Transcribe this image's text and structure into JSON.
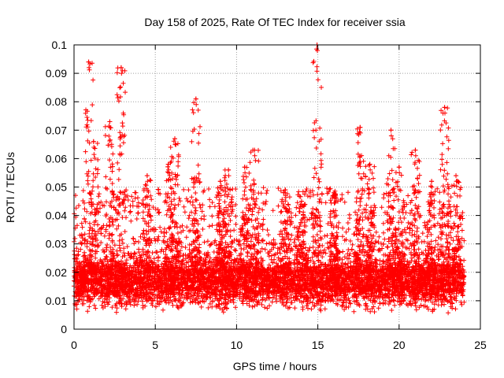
{
  "chart_data": {
    "type": "scatter",
    "title": "Day 158 of 2025, Rate Of TEC Index for receiver ssia",
    "xlabel": "GPS time / hours",
    "ylabel": "ROTI / TECUs",
    "xlim": [
      0,
      25
    ],
    "ylim": [
      0,
      0.1
    ],
    "x_ticks": [
      "0",
      "5",
      "10",
      "15",
      "20",
      "25"
    ],
    "y_ticks": [
      "0",
      "0.01",
      "0.02",
      "0.03",
      "0.04",
      "0.05",
      "0.06",
      "0.07",
      "0.08",
      "0.09",
      "0.1"
    ],
    "grid": true,
    "marker": "+",
    "series_color": "#ff0000",
    "x_range_of_data": [
      0,
      24
    ],
    "baseline_band": [
      0.005,
      0.025
    ],
    "peaks": [
      {
        "x": 0.9,
        "y": 0.094
      },
      {
        "x": 1.2,
        "y": 0.066
      },
      {
        "x": 2.2,
        "y": 0.073
      },
      {
        "x": 2.9,
        "y": 0.092
      },
      {
        "x": 4.5,
        "y": 0.054
      },
      {
        "x": 5.8,
        "y": 0.058
      },
      {
        "x": 6.2,
        "y": 0.067
      },
      {
        "x": 7.5,
        "y": 0.081
      },
      {
        "x": 9.0,
        "y": 0.052
      },
      {
        "x": 9.5,
        "y": 0.056
      },
      {
        "x": 10.5,
        "y": 0.057
      },
      {
        "x": 11.1,
        "y": 0.063
      },
      {
        "x": 13.0,
        "y": 0.049
      },
      {
        "x": 14.0,
        "y": 0.045
      },
      {
        "x": 14.95,
        "y": 0.1
      },
      {
        "x": 16.0,
        "y": 0.048
      },
      {
        "x": 17.6,
        "y": 0.071
      },
      {
        "x": 18.2,
        "y": 0.058
      },
      {
        "x": 19.5,
        "y": 0.07
      },
      {
        "x": 20.0,
        "y": 0.057
      },
      {
        "x": 21.0,
        "y": 0.063
      },
      {
        "x": 22.0,
        "y": 0.052
      },
      {
        "x": 22.8,
        "y": 0.078
      },
      {
        "x": 23.5,
        "y": 0.054
      }
    ]
  }
}
